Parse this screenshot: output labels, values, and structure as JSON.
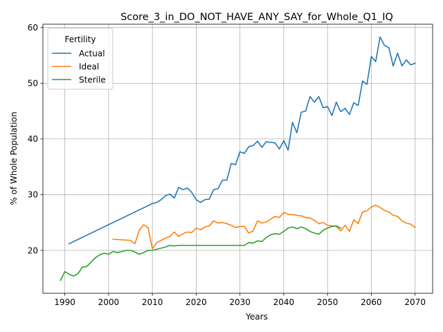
{
  "chart_data": {
    "type": "line",
    "title": "Score_3_in_DO_NOT_HAVE_ANY_SAY_for_Whole_Q1_IQ",
    "xlabel": "Years",
    "ylabel": "% of Whole Population",
    "xlim": [
      1985,
      2074
    ],
    "ylim": [
      12.3,
      60.6
    ],
    "xticks": [
      1990,
      2000,
      2010,
      2020,
      2030,
      2040,
      2050,
      2060,
      2070
    ],
    "yticks": [
      20,
      30,
      40,
      50,
      60
    ],
    "grid": true,
    "legend": {
      "title": "Fertility",
      "placement": "upper-left"
    },
    "series": [
      {
        "name": "Actual",
        "color": "#1f77b4",
        "points": [
          [
            1991,
            21.2
          ],
          [
            2010,
            28.4
          ],
          [
            2011,
            28.6
          ],
          [
            2012,
            29.1
          ],
          [
            2013,
            29.8
          ],
          [
            2014,
            30.1
          ],
          [
            2015,
            29.4
          ],
          [
            2016,
            31.3
          ],
          [
            2017,
            30.9
          ],
          [
            2018,
            31.2
          ],
          [
            2019,
            30.4
          ],
          [
            2020,
            29.1
          ],
          [
            2021,
            28.6
          ],
          [
            2022,
            29.1
          ],
          [
            2023,
            29.2
          ],
          [
            2024,
            30.9
          ],
          [
            2025,
            31.1
          ],
          [
            2026,
            32.6
          ],
          [
            2027,
            32.6
          ],
          [
            2028,
            35.6
          ],
          [
            2029,
            35.4
          ],
          [
            2030,
            37.7
          ],
          [
            2031,
            37.4
          ],
          [
            2032,
            38.6
          ],
          [
            2033,
            38.8
          ],
          [
            2034,
            39.6
          ],
          [
            2035,
            38.5
          ],
          [
            2036,
            39.5
          ],
          [
            2037,
            39.4
          ],
          [
            2038,
            39.3
          ],
          [
            2039,
            38.2
          ],
          [
            2040,
            39.7
          ],
          [
            2041,
            38.0
          ],
          [
            2042,
            43.0
          ],
          [
            2043,
            41.1
          ],
          [
            2044,
            44.8
          ],
          [
            2045,
            45.0
          ],
          [
            2046,
            47.6
          ],
          [
            2047,
            46.6
          ],
          [
            2048,
            47.6
          ],
          [
            2049,
            45.6
          ],
          [
            2050,
            45.8
          ],
          [
            2051,
            44.2
          ],
          [
            2052,
            46.6
          ],
          [
            2053,
            44.9
          ],
          [
            2054,
            45.5
          ],
          [
            2055,
            44.4
          ],
          [
            2056,
            46.5
          ],
          [
            2057,
            46.0
          ],
          [
            2058,
            50.4
          ],
          [
            2059,
            49.8
          ],
          [
            2060,
            54.8
          ],
          [
            2061,
            53.9
          ],
          [
            2062,
            58.3
          ],
          [
            2063,
            56.8
          ],
          [
            2064,
            56.4
          ],
          [
            2065,
            53.1
          ],
          [
            2066,
            55.4
          ],
          [
            2067,
            53.1
          ],
          [
            2068,
            54.2
          ],
          [
            2069,
            53.3
          ],
          [
            2070,
            53.6
          ]
        ]
      },
      {
        "name": "Ideal",
        "color": "#ff7f0e",
        "points": [
          [
            2001,
            22.0
          ],
          [
            2005,
            21.8
          ],
          [
            2006,
            21.2
          ],
          [
            2007,
            23.6
          ],
          [
            2008,
            24.6
          ],
          [
            2009,
            24.1
          ],
          [
            2010,
            20.3
          ],
          [
            2011,
            21.4
          ],
          [
            2012,
            21.8
          ],
          [
            2013,
            22.2
          ],
          [
            2014,
            22.5
          ],
          [
            2015,
            23.3
          ],
          [
            2016,
            22.5
          ],
          [
            2017,
            23.0
          ],
          [
            2018,
            23.3
          ],
          [
            2019,
            23.2
          ],
          [
            2020,
            24.0
          ],
          [
            2021,
            23.7
          ],
          [
            2022,
            24.2
          ],
          [
            2023,
            24.4
          ],
          [
            2024,
            25.3
          ],
          [
            2025,
            24.9
          ],
          [
            2026,
            25.0
          ],
          [
            2027,
            24.8
          ],
          [
            2028,
            24.5
          ],
          [
            2029,
            24.1
          ],
          [
            2030,
            24.3
          ],
          [
            2031,
            24.3
          ],
          [
            2032,
            23.1
          ],
          [
            2033,
            23.5
          ],
          [
            2034,
            25.3
          ],
          [
            2035,
            24.9
          ],
          [
            2036,
            25.1
          ],
          [
            2037,
            25.6
          ],
          [
            2038,
            26.1
          ],
          [
            2039,
            25.9
          ],
          [
            2040,
            26.8
          ],
          [
            2041,
            26.5
          ],
          [
            2042,
            26.4
          ],
          [
            2043,
            26.3
          ],
          [
            2044,
            26.2
          ],
          [
            2045,
            25.9
          ],
          [
            2046,
            25.8
          ],
          [
            2047,
            25.4
          ],
          [
            2048,
            24.8
          ],
          [
            2049,
            25.0
          ],
          [
            2050,
            24.5
          ],
          [
            2051,
            24.4
          ],
          [
            2052,
            24.3
          ],
          [
            2053,
            23.5
          ],
          [
            2054,
            24.5
          ],
          [
            2055,
            23.4
          ],
          [
            2056,
            25.5
          ],
          [
            2057,
            24.8
          ],
          [
            2058,
            26.9
          ],
          [
            2059,
            27.1
          ],
          [
            2060,
            27.8
          ],
          [
            2061,
            28.1
          ],
          [
            2062,
            27.7
          ],
          [
            2063,
            27.2
          ],
          [
            2064,
            26.9
          ],
          [
            2065,
            26.3
          ],
          [
            2066,
            26.1
          ],
          [
            2067,
            25.3
          ],
          [
            2068,
            24.9
          ],
          [
            2069,
            24.7
          ],
          [
            2070,
            24.1
          ]
        ]
      },
      {
        "name": "Sterile",
        "color": "#2ca02c",
        "points": [
          [
            1989,
            14.6
          ],
          [
            1990,
            16.2
          ],
          [
            1991,
            15.7
          ],
          [
            1992,
            15.4
          ],
          [
            1993,
            15.8
          ],
          [
            1994,
            17.0
          ],
          [
            1995,
            17.1
          ],
          [
            1996,
            17.9
          ],
          [
            1997,
            18.7
          ],
          [
            1998,
            19.2
          ],
          [
            1999,
            19.5
          ],
          [
            2000,
            19.3
          ],
          [
            2001,
            19.8
          ],
          [
            2002,
            19.6
          ],
          [
            2003,
            19.8
          ],
          [
            2004,
            20.0
          ],
          [
            2005,
            20.0
          ],
          [
            2006,
            19.7
          ],
          [
            2007,
            19.3
          ],
          [
            2008,
            19.6
          ],
          [
            2009,
            20.0
          ],
          [
            2010,
            20.0
          ],
          [
            2011,
            20.2
          ],
          [
            2012,
            20.4
          ],
          [
            2013,
            20.6
          ],
          [
            2014,
            20.9
          ],
          [
            2015,
            20.8
          ],
          [
            2016,
            20.9
          ],
          [
            2017,
            20.9
          ],
          [
            2018,
            20.9
          ],
          [
            2019,
            20.9
          ],
          [
            2020,
            20.9
          ],
          [
            2021,
            20.9
          ],
          [
            2022,
            20.9
          ],
          [
            2023,
            20.9
          ],
          [
            2024,
            20.9
          ],
          [
            2025,
            20.9
          ],
          [
            2026,
            20.9
          ],
          [
            2027,
            20.9
          ],
          [
            2028,
            20.9
          ],
          [
            2029,
            20.9
          ],
          [
            2030,
            20.9
          ],
          [
            2031,
            20.9
          ],
          [
            2032,
            21.4
          ],
          [
            2033,
            21.3
          ],
          [
            2034,
            21.7
          ],
          [
            2035,
            21.6
          ],
          [
            2036,
            22.3
          ],
          [
            2037,
            22.8
          ],
          [
            2038,
            23.0
          ],
          [
            2039,
            22.9
          ],
          [
            2040,
            23.4
          ],
          [
            2041,
            24.0
          ],
          [
            2042,
            24.2
          ],
          [
            2043,
            23.9
          ],
          [
            2044,
            24.2
          ],
          [
            2045,
            23.9
          ],
          [
            2046,
            23.4
          ],
          [
            2047,
            23.1
          ],
          [
            2048,
            22.9
          ],
          [
            2049,
            23.6
          ],
          [
            2050,
            24.0
          ],
          [
            2051,
            24.3
          ],
          [
            2052,
            24.4
          ],
          [
            2053,
            24.0
          ]
        ]
      }
    ]
  }
}
